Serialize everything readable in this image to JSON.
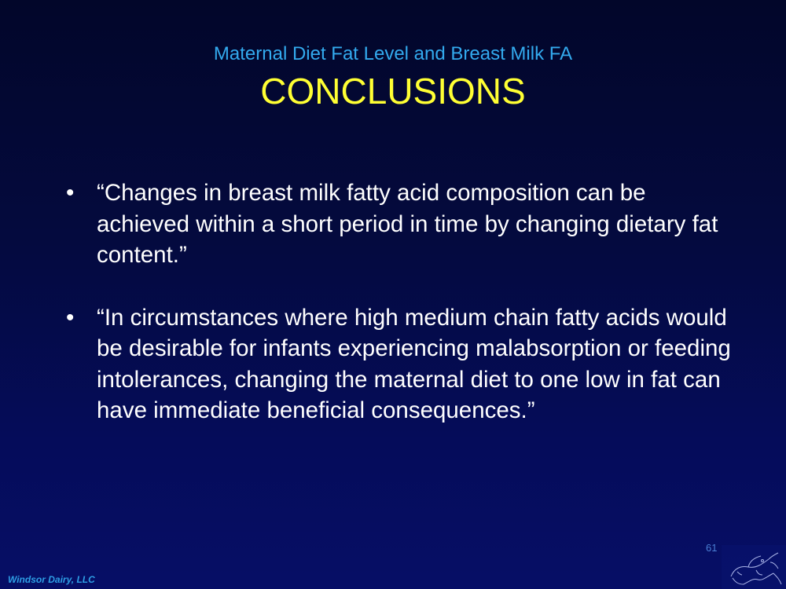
{
  "slide": {
    "subtitle": "Maternal Diet Fat Level and Breast Milk FA",
    "title": "CONCLUSIONS",
    "bullets": [
      {
        "marker": "•",
        "text": "“Changes in breast milk fatty acid composition can be achieved within a short period in time by changing dietary fat content.”"
      },
      {
        "marker": "•",
        "text": "“In circumstances where high medium chain fatty acids would be desirable for infants experiencing malabsorption or feeding intolerances, changing the maternal diet to one low in fat can have immediate beneficial consequences.”"
      }
    ],
    "page_number": "61"
  },
  "footer": {
    "brand": "Windsor Dairy, LLC",
    "logo_icon": "cow-sketch-icon"
  },
  "colors": {
    "background_top": "#02062a",
    "background_bottom": "#060e66",
    "subtitle": "#33aaee",
    "title": "#ffff33",
    "body_text": "#ffffff",
    "brand": "#2e9fe6"
  }
}
